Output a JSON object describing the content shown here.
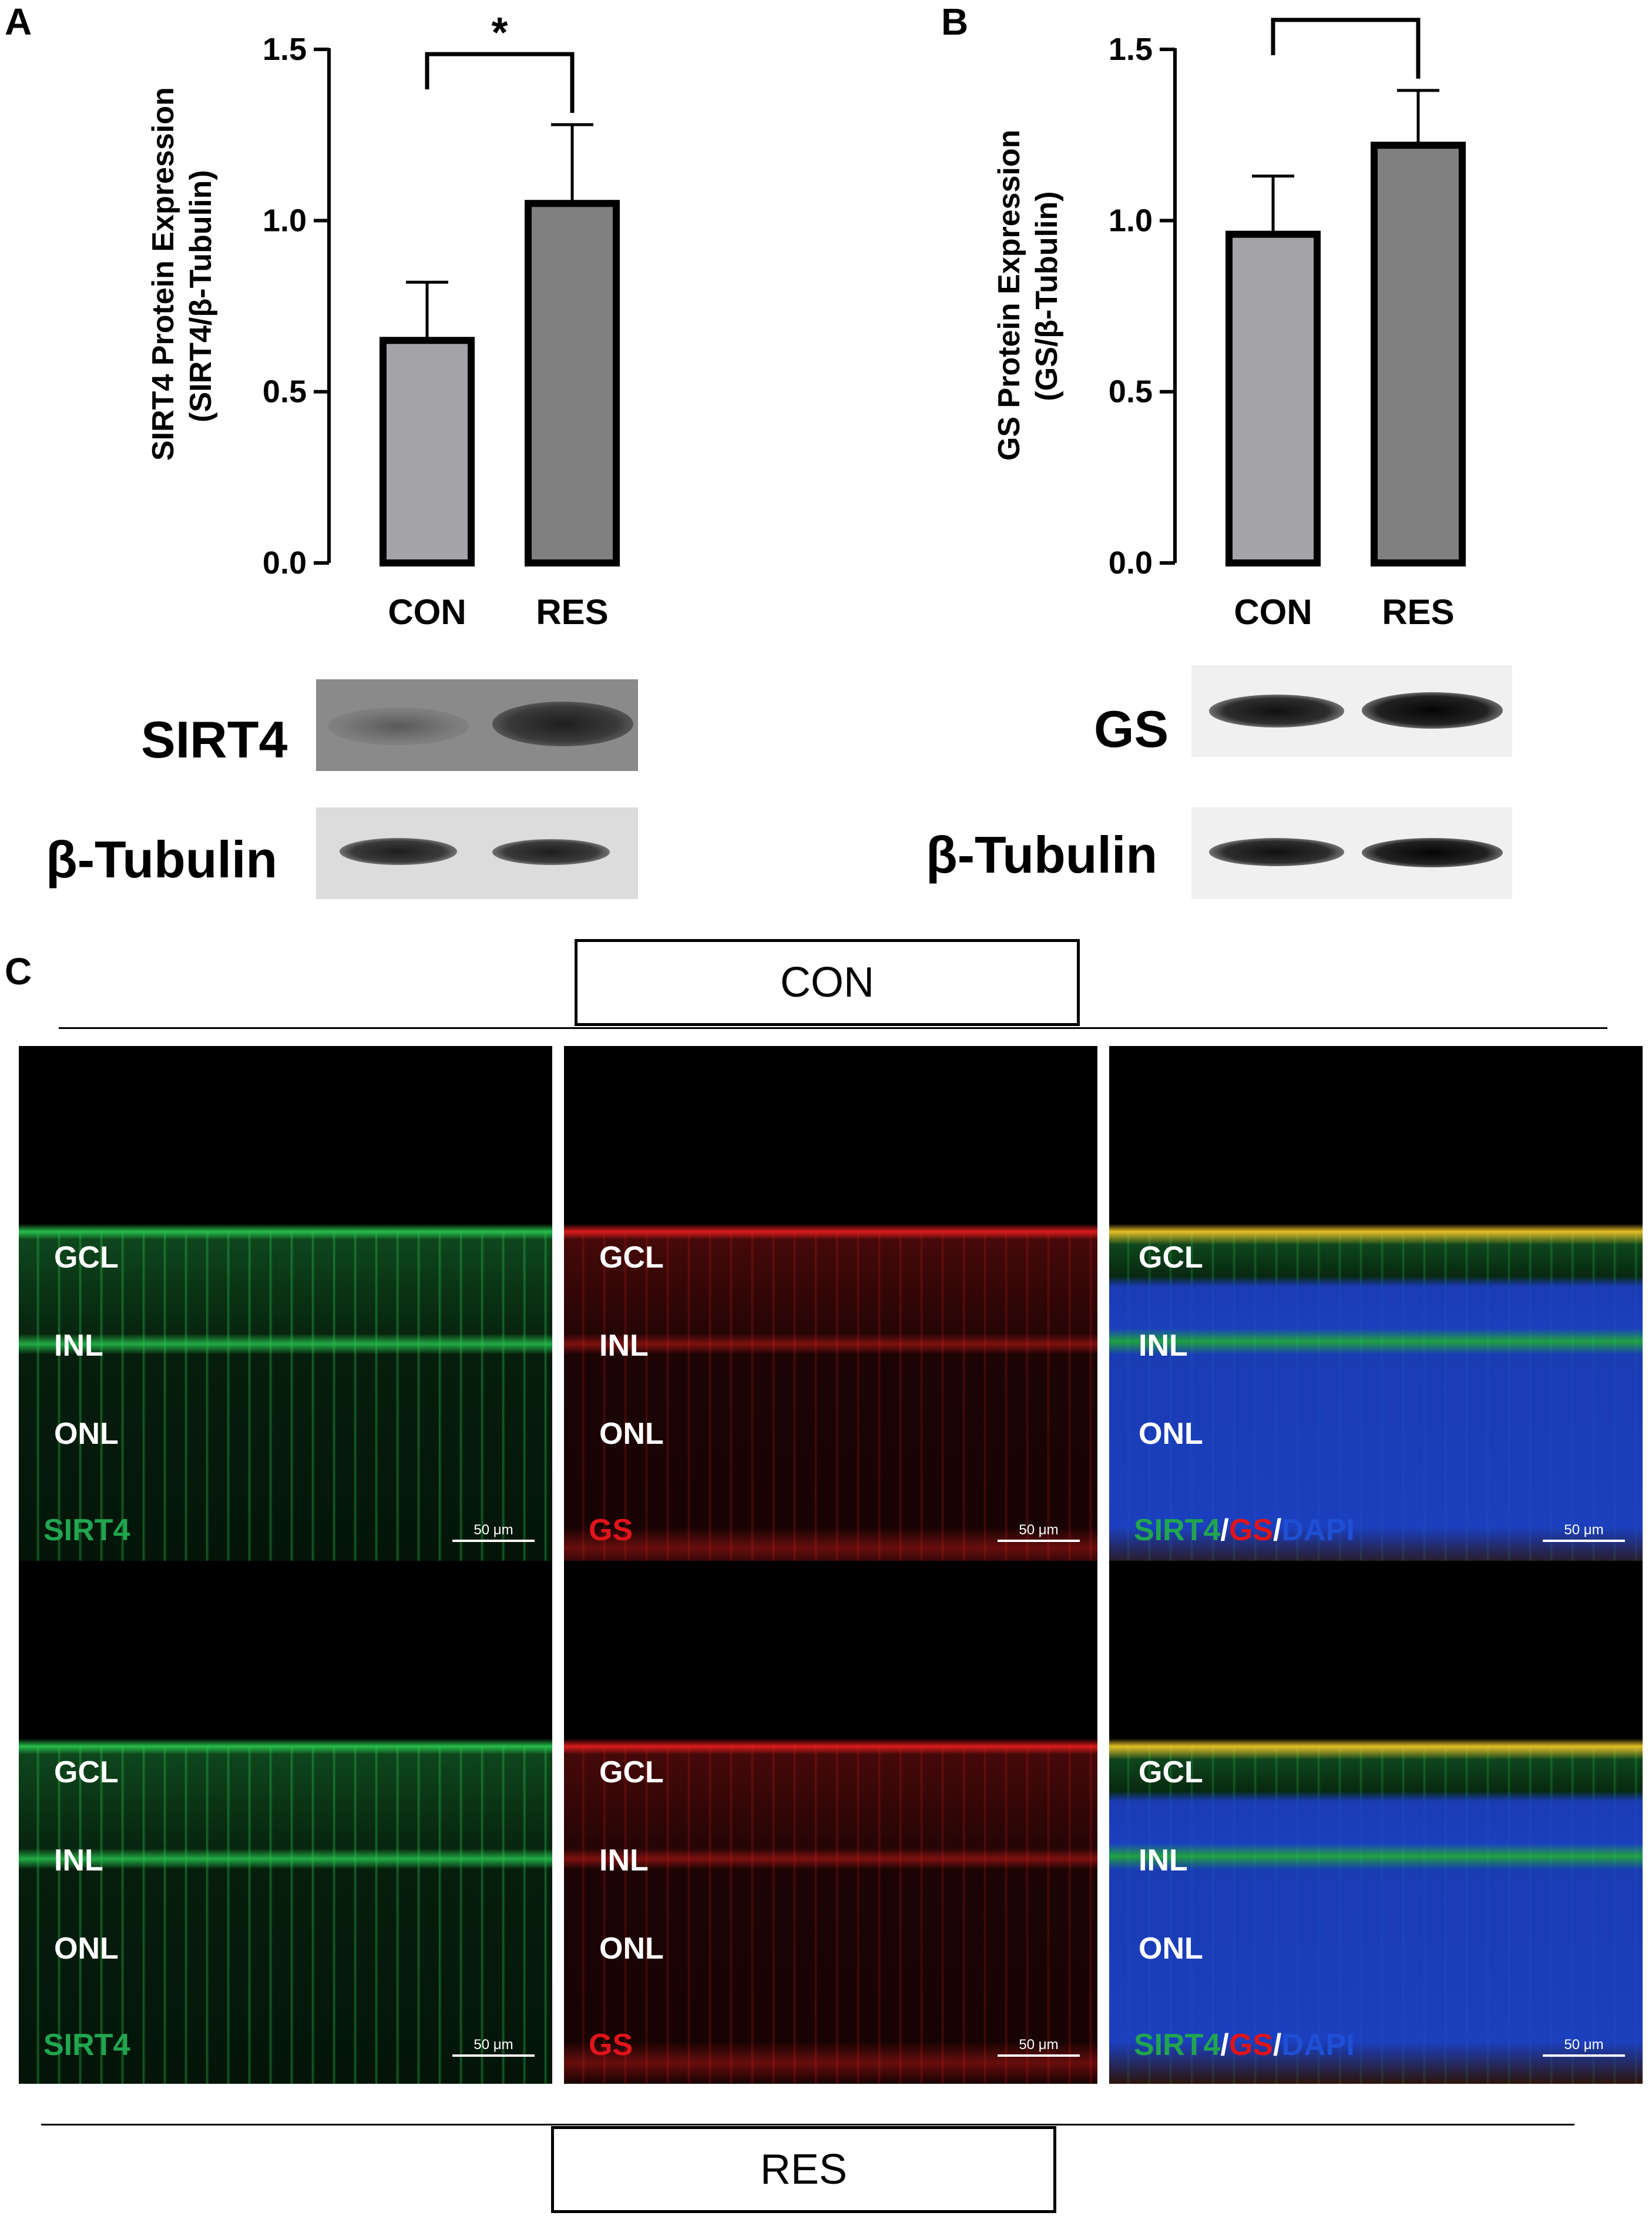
{
  "panels": {
    "a_letter": "A",
    "b_letter": "B",
    "c_letter": "C"
  },
  "chart_data": [
    {
      "type": "bar",
      "panel": "A",
      "ylabel_line1": "SIRT4 Protein Expression",
      "ylabel_line2": "(SIRT4/β-Tubulin)",
      "categories": [
        "CON",
        "RES"
      ],
      "values": [
        0.65,
        1.05
      ],
      "errors": [
        0.17,
        0.23
      ],
      "ylim": [
        0,
        1.5
      ],
      "yticks": [
        "0.0",
        "0.5",
        "1.0",
        "1.5"
      ],
      "significance": "*",
      "bar_colors": [
        "#a3a3a8",
        "#808080"
      ]
    },
    {
      "type": "bar",
      "panel": "B",
      "ylabel_line1": "GS Protein Expression",
      "ylabel_line2": "(GS/β-Tubulin)",
      "categories": [
        "CON",
        "RES"
      ],
      "values": [
        0.96,
        1.22
      ],
      "errors": [
        0.17,
        0.16
      ],
      "ylim": [
        0,
        1.5
      ],
      "yticks": [
        "0.0",
        "0.5",
        "1.0",
        "1.5"
      ],
      "significance": "*",
      "bar_colors": [
        "#a3a3a8",
        "#808080"
      ]
    }
  ],
  "blots": {
    "a_top": "SIRT4",
    "a_bottom": "β-Tubulin",
    "b_top": "GS",
    "b_bottom": "β-Tubulin"
  },
  "panel_c": {
    "con_label": "CON",
    "res_label": "RES",
    "layers": [
      "GCL",
      "INL",
      "ONL"
    ],
    "stain_sirt4": "SIRT4",
    "stain_gs": "GS",
    "merge_sep": "/",
    "stain_dapi": "DAPI",
    "scale_bar": "50 μm",
    "colors": {
      "green": "#21a64f",
      "red": "#e0141a",
      "blue": "#1e4fd4"
    }
  }
}
